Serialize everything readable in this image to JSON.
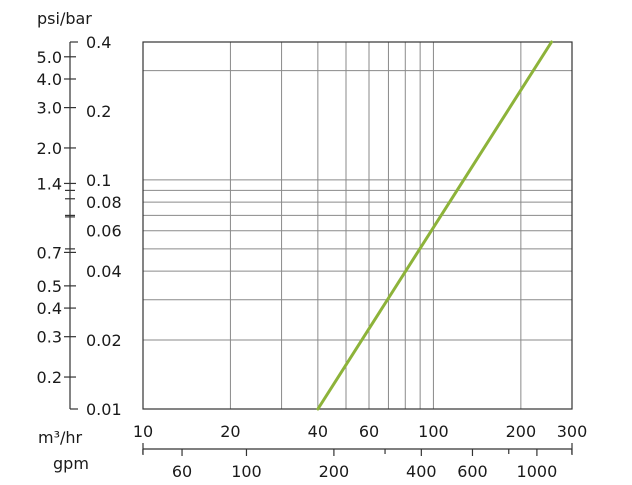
{
  "chart_data": {
    "type": "line",
    "title": "",
    "colors": {
      "curve": "#8db33a",
      "grid": "#8a8a8a",
      "axis": "#333333"
    },
    "grid": true,
    "x_scale": "log",
    "y_scale": "log",
    "xlim": [
      10,
      300
    ],
    "ylim": [
      0.01,
      0.4
    ],
    "x_axis": {
      "unit_label": "m³/hr",
      "ticks": [
        10,
        20,
        40,
        60,
        100,
        200,
        300
      ],
      "tick_labels": [
        "10",
        "20",
        "40",
        "60",
        "100",
        "200",
        "300"
      ],
      "gridlines": [
        20,
        30,
        40,
        50,
        60,
        70,
        80,
        90,
        100,
        200
      ]
    },
    "x_axis_secondary": {
      "unit_label": "gpm",
      "ticks": [
        60,
        100,
        200,
        400,
        600,
        1000
      ],
      "tick_labels": [
        "60",
        "100",
        "200",
        "400",
        "600",
        "1000"
      ],
      "minor_ticks": [
        44,
        300,
        800,
        1320
      ]
    },
    "y_axis_right": {
      "ticks": [
        0.01,
        0.02,
        0.04,
        0.06,
        0.08,
        0.1,
        0.2,
        0.4
      ],
      "tick_labels": [
        "0.01",
        "0.02",
        "0.04",
        "0.06",
        "0.08",
        "0.1",
        "0.2",
        "0.4"
      ],
      "minor_ticks": [
        0.05,
        0.07,
        0.09
      ],
      "gridlines": [
        0.02,
        0.03,
        0.04,
        0.05,
        0.06,
        0.07,
        0.08,
        0.09,
        0.1,
        0.3
      ]
    },
    "y_axis_left": {
      "unit_label": "psi/bar",
      "ticks": [
        0.2,
        0.3,
        0.4,
        0.5,
        0.7,
        1.4,
        2.0,
        3.0,
        4.0,
        5.0
      ],
      "tick_labels": [
        "0.2",
        "0.3",
        "0.4",
        "0.5",
        "0.7",
        "1.4",
        "2.0",
        "3.0",
        "4.0",
        "5.0"
      ],
      "minor_ticks": [
        1.0,
        1.2
      ],
      "bar_per_psi": 0.0689476
    },
    "series": [
      {
        "x": [
          40,
          255
        ],
        "y": [
          0.01,
          0.4
        ]
      }
    ]
  }
}
